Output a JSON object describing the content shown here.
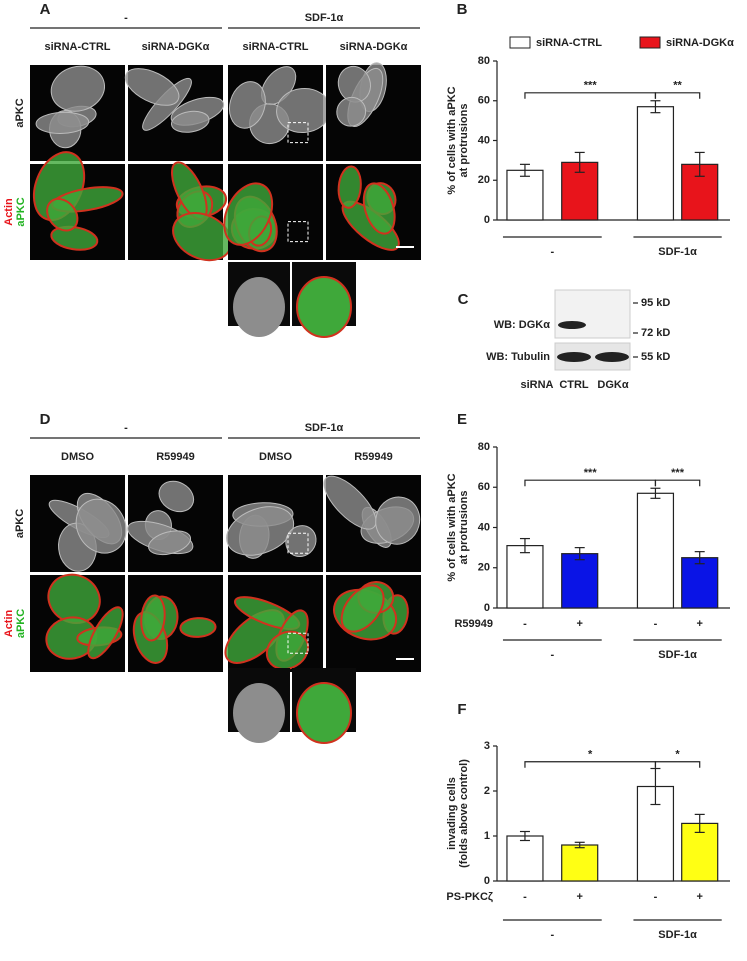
{
  "figure": {
    "A": {
      "letter": "A",
      "groups": [
        "-",
        "SDF-1α"
      ],
      "columns": [
        "siRNA-CTRL",
        "siRNA-DGKα",
        "siRNA-CTRL",
        "siRNA-DGKα"
      ],
      "row1": "aPKC",
      "row2a": "Actin",
      "row2b": "aPKC"
    },
    "C": {
      "letter": "C",
      "blot1": "WB: DGKα",
      "blot2": "WB: Tubulin",
      "markers": [
        "95 kD",
        "72 kD",
        "55 kD"
      ],
      "row": "siRNA",
      "lanes": [
        "CTRL",
        "DGKα"
      ]
    },
    "D": {
      "letter": "D",
      "groups": [
        "-",
        "SDF-1α"
      ],
      "columns": [
        "DMSO",
        "R59949",
        "DMSO",
        "R59949"
      ],
      "row1": "aPKC",
      "row2a": "Actin",
      "row2b": "aPKC"
    }
  },
  "chart_data": [
    {
      "type": "grouped-bar",
      "panel": "B",
      "ylabel": [
        "% of cells with aPKC",
        "at protrusions"
      ],
      "categories": [
        "-",
        "SDF-1α"
      ],
      "series": [
        {
          "name": "siRNA-CTRL",
          "color": "#ffffff",
          "values": [
            25,
            57
          ],
          "errors": [
            3,
            3
          ]
        },
        {
          "name": "siRNA-DGKα",
          "color": "#e8141b",
          "values": [
            29,
            28
          ],
          "errors": [
            5,
            6
          ]
        }
      ],
      "significance": [
        "***",
        "**"
      ],
      "ylim": [
        0,
        80
      ],
      "yticks": [
        0,
        20,
        40,
        60,
        80
      ]
    },
    {
      "type": "bar",
      "panel": "E",
      "ylabel": [
        "% of cells with aPKC",
        "at protrusions"
      ],
      "row_label": "R59949",
      "categories": [
        "-",
        "+",
        "-",
        "+"
      ],
      "groups": [
        "-",
        "SDF-1α"
      ],
      "values": [
        31,
        27,
        57,
        25
      ],
      "errors": [
        3.5,
        3,
        2.5,
        3
      ],
      "colors": [
        "#ffffff",
        "#0a14e6",
        "#ffffff",
        "#0a14e6"
      ],
      "significance": [
        "***",
        "***"
      ],
      "ylim": [
        0,
        80
      ],
      "yticks": [
        0,
        20,
        40,
        60,
        80
      ]
    },
    {
      "type": "bar",
      "panel": "F",
      "ylabel": [
        "invading cells",
        "(folds above control)"
      ],
      "row_label": "PS-PKCζ",
      "categories": [
        "-",
        "+",
        "-",
        "+"
      ],
      "groups": [
        "-",
        "SDF-1α"
      ],
      "values": [
        1.0,
        0.8,
        2.1,
        1.28
      ],
      "errors": [
        0.1,
        0.06,
        0.4,
        0.2
      ],
      "colors": [
        "#ffffff",
        "#ffff14",
        "#ffffff",
        "#ffff14"
      ],
      "significance": [
        "*",
        "*"
      ],
      "ylim": [
        0,
        3
      ],
      "yticks": [
        0,
        1,
        2,
        3
      ]
    }
  ]
}
